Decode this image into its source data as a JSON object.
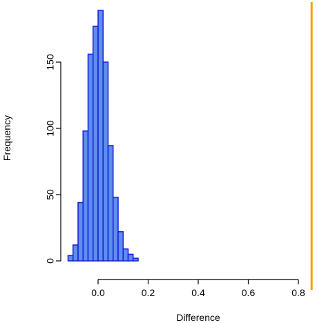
{
  "chart_data": {
    "type": "bar",
    "subtype": "histogram",
    "title": "",
    "xlabel": "Difference",
    "ylabel": "Frequency",
    "xlim": [
      -0.14,
      0.86
    ],
    "ylim": [
      0,
      190
    ],
    "x_ticks": [
      0.0,
      0.2,
      0.4,
      0.6,
      0.8
    ],
    "x_tick_labels": [
      "0.0",
      "0.2",
      "0.4",
      "0.6",
      "0.8"
    ],
    "y_ticks": [
      0,
      50,
      100,
      150
    ],
    "y_tick_labels": [
      "0",
      "50",
      "100",
      "150"
    ],
    "grid": false,
    "bin_width": 0.02,
    "bins": [
      {
        "start": -0.12,
        "count": 4
      },
      {
        "start": -0.1,
        "count": 12
      },
      {
        "start": -0.08,
        "count": 44
      },
      {
        "start": -0.06,
        "count": 98
      },
      {
        "start": -0.04,
        "count": 156
      },
      {
        "start": -0.02,
        "count": 177
      },
      {
        "start": 0.0,
        "count": 189
      },
      {
        "start": 0.02,
        "count": 150
      },
      {
        "start": 0.04,
        "count": 87
      },
      {
        "start": 0.06,
        "count": 48
      },
      {
        "start": 0.08,
        "count": 22
      },
      {
        "start": 0.1,
        "count": 9
      },
      {
        "start": 0.12,
        "count": 5
      },
      {
        "start": 0.14,
        "count": 2
      }
    ],
    "reference_line": {
      "x": 0.853,
      "color": "#f5a000"
    },
    "colors": {
      "bar_fill": "#5b8ff0",
      "bar_stroke": "#1a1ad6"
    }
  }
}
